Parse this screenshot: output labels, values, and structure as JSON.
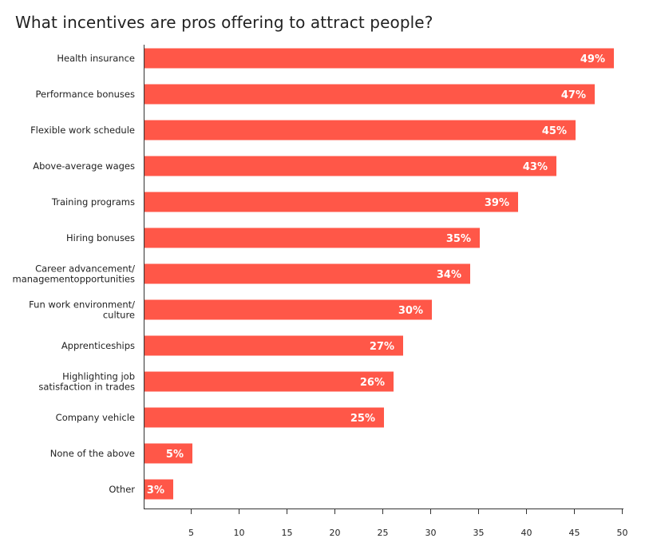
{
  "chart_data": {
    "type": "bar",
    "orientation": "horizontal",
    "title": "What incentives are pros offering to attract people?",
    "categories": [
      "Health insurance",
      "Performance bonuses",
      "Flexible work schedule",
      "Above-average wages",
      "Training programs",
      "Hiring bonuses",
      "Career advancement/\nmanagementopportunities",
      "Fun work environment/\nculture",
      "Apprenticeships",
      "Highlighting job\nsatisfaction in trades",
      "Company vehicle",
      "None of the above",
      "Other"
    ],
    "values": [
      49,
      47,
      45,
      43,
      39,
      35,
      34,
      30,
      27,
      26,
      25,
      5,
      3
    ],
    "data_labels": [
      "49%",
      "47%",
      "45%",
      "43%",
      "39%",
      "35%",
      "34%",
      "30%",
      "27%",
      "26%",
      "25%",
      "5%",
      "3%"
    ],
    "xlim": [
      0,
      50
    ],
    "xticks": [
      5,
      10,
      15,
      20,
      25,
      30,
      35,
      40,
      45,
      50
    ],
    "xlabel": "",
    "ylabel": "",
    "grid": false,
    "bar_color": "#FF5748"
  }
}
